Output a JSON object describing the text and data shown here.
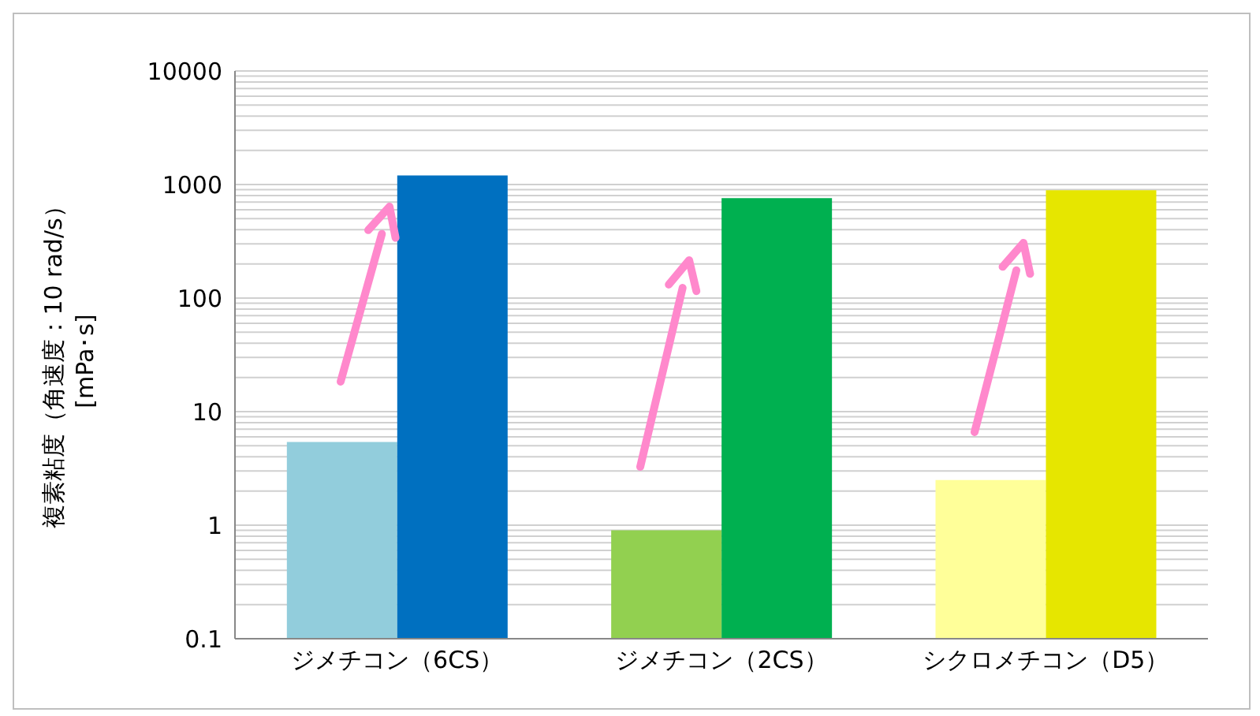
{
  "chart_data": {
    "type": "bar",
    "ylabel": "複素粘度（角速度：10 rad/s）\n[mPa･s]",
    "categories": [
      "ジメチコン（6CS）",
      "ジメチコン（2CS）",
      "シクロメチコン（D5）"
    ],
    "series": [
      {
        "colors": [
          "#92cddc",
          "#92d050",
          "#ffff99"
        ],
        "values": [
          5.4,
          0.9,
          2.5
        ]
      },
      {
        "colors": [
          "#0070c0",
          "#00b050",
          "#e6e600"
        ],
        "values": [
          1200,
          760,
          890
        ]
      }
    ],
    "log": true,
    "ylim": [
      0.1,
      10000
    ],
    "yticks": [
      0.1,
      {
        "value": 0.2,
        "label": null
      },
      {
        "value": 0.3,
        "label": null
      },
      {
        "value": 0.4,
        "label": null
      },
      {
        "value": 0.5,
        "label": null
      },
      {
        "value": 0.6,
        "label": null
      },
      {
        "value": 0.7,
        "label": null
      },
      {
        "value": 0.8,
        "label": null
      },
      {
        "value": 0.9,
        "label": null
      },
      1,
      {
        "value": 2,
        "label": null
      },
      {
        "value": 3,
        "label": null
      },
      {
        "value": 4,
        "label": null
      },
      {
        "value": 5,
        "label": null
      },
      {
        "value": 6,
        "label": null
      },
      {
        "value": 7,
        "label": null
      },
      {
        "value": 8,
        "label": null
      },
      {
        "value": 9,
        "label": null
      },
      10,
      {
        "value": 20,
        "label": null
      },
      {
        "value": 30,
        "label": null
      },
      {
        "value": 40,
        "label": null
      },
      {
        "value": 50,
        "label": null
      },
      {
        "value": 60,
        "label": null
      },
      {
        "value": 70,
        "label": null
      },
      {
        "value": 80,
        "label": null
      },
      {
        "value": 90,
        "label": null
      },
      100,
      {
        "value": 200,
        "label": null
      },
      {
        "value": 300,
        "label": null
      },
      {
        "value": 400,
        "label": null
      },
      {
        "value": 500,
        "label": null
      },
      {
        "value": 600,
        "label": null
      },
      {
        "value": 700,
        "label": null
      },
      {
        "value": 800,
        "label": null
      },
      {
        "value": 900,
        "label": null
      },
      1000,
      {
        "value": 2000,
        "label": null
      },
      {
        "value": 3000,
        "label": null
      },
      {
        "value": 4000,
        "label": null
      },
      {
        "value": 5000,
        "label": null
      },
      {
        "value": 6000,
        "label": null
      },
      {
        "value": 7000,
        "label": null
      },
      {
        "value": 8000,
        "label": null
      },
      {
        "value": 9000,
        "label": null
      },
      10000
    ],
    "grid": "y"
  }
}
